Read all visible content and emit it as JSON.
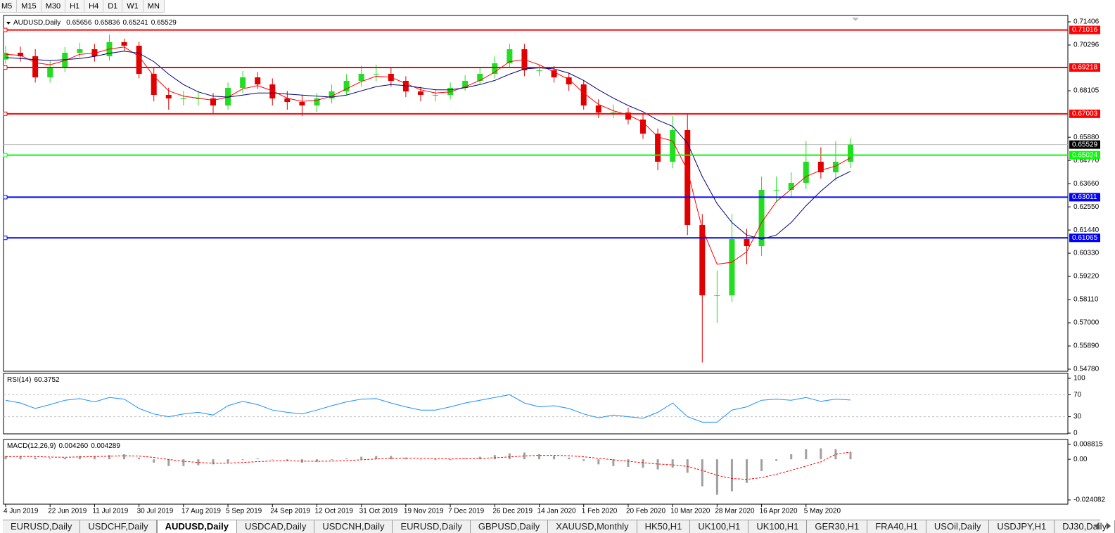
{
  "toolbar": {
    "timeframes": [
      "M5",
      "M15",
      "M30",
      "H1",
      "H4",
      "D1",
      "W1",
      "MN"
    ]
  },
  "chart_data": {
    "type": "candlestick",
    "symbol": "AUDUSD,Daily",
    "last_bar": [
      0.65656,
      0.65836,
      0.65241,
      0.65529
    ],
    "bull_color": "#22dd22",
    "bear_color": "#e00000",
    "open": [
      0.696,
      0.69925,
      0.69757,
      0.68747,
      0.69252,
      0.69925,
      0.70093,
      0.69757,
      0.7043,
      0.70262,
      0.68915,
      0.67906,
      0.67737,
      0.67737,
      0.67737,
      0.67401,
      0.68242,
      0.68747,
      0.6841,
      0.67737,
      0.67569,
      0.67401,
      0.67737,
      0.68074,
      0.68579,
      0.68915,
      0.68915,
      0.68579,
      0.68074,
      0.67906,
      0.67906,
      0.68242,
      0.68579,
      0.68915,
      0.6942,
      0.70093,
      0.69084,
      0.69084,
      0.68747,
      0.6841,
      0.67401,
      0.67064,
      0.67064,
      0.66727,
      0.66054,
      0.64708,
      0.66223,
      0.61679,
      0.58313,
      0.58313,
      0.61005,
      0.60669,
      0.63362,
      0.63362,
      0.63698,
      0.64708,
      0.64203,
      0.64708
    ],
    "high": [
      0.7025,
      0.7022,
      0.701,
      0.6955,
      0.702,
      0.704,
      0.7035,
      0.708,
      0.706,
      0.7045,
      0.692,
      0.6825,
      0.681,
      0.681,
      0.68,
      0.685,
      0.6905,
      0.69,
      0.687,
      0.681,
      0.679,
      0.68,
      0.684,
      0.689,
      0.693,
      0.6935,
      0.692,
      0.688,
      0.683,
      0.682,
      0.685,
      0.6885,
      0.692,
      0.6975,
      0.7035,
      0.7035,
      0.6935,
      0.693,
      0.6895,
      0.686,
      0.677,
      0.6745,
      0.673,
      0.67,
      0.663,
      0.669,
      0.67,
      0.622,
      0.595,
      0.622,
      0.615,
      0.64,
      0.64,
      0.642,
      0.657,
      0.654,
      0.657,
      0.6584
    ],
    "low": [
      0.694,
      0.695,
      0.685,
      0.685,
      0.69,
      0.697,
      0.695,
      0.6955,
      0.7,
      0.687,
      0.676,
      0.672,
      0.674,
      0.674,
      0.67,
      0.672,
      0.68,
      0.682,
      0.674,
      0.672,
      0.669,
      0.671,
      0.675,
      0.679,
      0.683,
      0.6855,
      0.683,
      0.678,
      0.676,
      0.676,
      0.677,
      0.681,
      0.684,
      0.687,
      0.692,
      0.688,
      0.688,
      0.685,
      0.681,
      0.672,
      0.668,
      0.668,
      0.665,
      0.658,
      0.643,
      0.644,
      0.612,
      0.551,
      0.57,
      0.58,
      0.598,
      0.602,
      0.628,
      0.63,
      0.634,
      0.639,
      0.638,
      0.644
    ],
    "close": [
      0.69925,
      0.69757,
      0.68747,
      0.69252,
      0.69925,
      0.70093,
      0.69757,
      0.7043,
      0.70262,
      0.68915,
      0.67906,
      0.67737,
      0.67737,
      0.67737,
      0.67401,
      0.68242,
      0.68747,
      0.6841,
      0.67737,
      0.67569,
      0.67401,
      0.67737,
      0.68074,
      0.68579,
      0.68915,
      0.68915,
      0.68579,
      0.68074,
      0.67906,
      0.67906,
      0.68242,
      0.68579,
      0.68915,
      0.6942,
      0.70093,
      0.69084,
      0.69084,
      0.68747,
      0.6841,
      0.67401,
      0.67064,
      0.67064,
      0.66727,
      0.66054,
      0.64708,
      0.66223,
      0.61679,
      0.58313,
      0.58313,
      0.61005,
      0.60669,
      0.63362,
      0.63362,
      0.63698,
      0.64708,
      0.64203,
      0.64708,
      0.65529
    ],
    "series": [
      {
        "color": "#ff0000",
        "values": [
          0.6985,
          0.698,
          0.6945,
          0.6935,
          0.6955,
          0.6985,
          0.699,
          0.701,
          0.702,
          0.6975,
          0.688,
          0.681,
          0.6785,
          0.6775,
          0.6765,
          0.678,
          0.682,
          0.6835,
          0.681,
          0.6775,
          0.676,
          0.6765,
          0.6785,
          0.682,
          0.6855,
          0.688,
          0.6875,
          0.6845,
          0.6815,
          0.68,
          0.6805,
          0.683,
          0.686,
          0.69,
          0.695,
          0.696,
          0.6935,
          0.69,
          0.6865,
          0.68,
          0.6745,
          0.6715,
          0.6695,
          0.666,
          0.659,
          0.657,
          0.643,
          0.615,
          0.598,
          0.599,
          0.604,
          0.618,
          0.628,
          0.634,
          0.64,
          0.643,
          0.645,
          0.649
        ]
      },
      {
        "color": "#000080",
        "values": [
          0.697,
          0.6965,
          0.696,
          0.6955,
          0.696,
          0.6965,
          0.6975,
          0.699,
          0.7,
          0.699,
          0.695,
          0.689,
          0.684,
          0.6805,
          0.6785,
          0.678,
          0.679,
          0.68,
          0.68,
          0.6795,
          0.679,
          0.6785,
          0.678,
          0.679,
          0.681,
          0.683,
          0.684,
          0.6835,
          0.6825,
          0.6815,
          0.6815,
          0.6825,
          0.684,
          0.686,
          0.689,
          0.6915,
          0.692,
          0.6915,
          0.6895,
          0.686,
          0.6815,
          0.6775,
          0.674,
          0.671,
          0.667,
          0.664,
          0.656,
          0.64,
          0.627,
          0.618,
          0.612,
          0.61,
          0.612,
          0.618,
          0.626,
          0.633,
          0.639,
          0.6425
        ]
      }
    ],
    "levels": [
      {
        "value": 0.71016,
        "color": "#ff0000"
      },
      {
        "value": 0.69218,
        "color": "#ff0000"
      },
      {
        "value": 0.67003,
        "color": "#ff0000"
      },
      {
        "value": 0.65024,
        "color": "#00ff00"
      },
      {
        "value": 0.63011,
        "color": "#0000ff"
      },
      {
        "value": 0.61065,
        "color": "#0000ff"
      }
    ],
    "ylim": [
      0.54679,
      0.71709
    ],
    "yticks": [
      0.71406,
      0.70296,
      0.68105,
      {
        "value": 0.6588,
        "label": "0.65880"
      },
      {
        "value": 0.6477,
        "label": "0.64770"
      },
      {
        "value": 0.6366,
        "label": "0.63660"
      },
      {
        "value": 0.6255,
        "label": "0.62550"
      },
      {
        "value": 0.6144,
        "label": "0.61440"
      },
      {
        "value": 0.6033,
        "label": "0.60330"
      },
      {
        "value": 0.5922,
        "label": "0.59220"
      },
      {
        "value": 0.5811,
        "label": "0.58110"
      },
      {
        "value": 0.57,
        "label": "0.57000"
      },
      {
        "value": 0.5589,
        "label": "0.55890"
      },
      {
        "value": 0.5478,
        "label": "0.54780"
      }
    ],
    "xticks": [
      {
        "value": 0,
        "label": "4 Jun 2019"
      },
      {
        "value": 3,
        "label": "22 Jun 2019"
      },
      {
        "value": 6,
        "label": "11 Jul 2019"
      },
      {
        "value": 9,
        "label": "30 Jul 2019"
      },
      {
        "value": 12,
        "label": "17 Aug 2019"
      },
      {
        "value": 15,
        "label": "5 Sep 2019"
      },
      {
        "value": 18,
        "label": "24 Sep 2019"
      },
      {
        "value": 21,
        "label": "12 Oct 2019"
      },
      {
        "value": 24,
        "label": "31 Oct 2019"
      },
      {
        "value": 27,
        "label": "19 Nov 2019"
      },
      {
        "value": 30,
        "label": "7 Dec 2019"
      },
      {
        "value": 33,
        "label": "26 Dec 2019"
      },
      {
        "value": 36,
        "label": "14 Jan 2020"
      },
      {
        "value": 39,
        "label": "1 Feb 2020"
      },
      {
        "value": 42,
        "label": "20 Feb 2020"
      },
      {
        "value": 45,
        "label": "10 Mar 2020"
      },
      {
        "value": 48,
        "label": "28 Mar 2020"
      },
      {
        "value": 51,
        "label": "16 Apr 2020"
      },
      {
        "value": 54,
        "label": "5 May 2020"
      }
    ],
    "rsi": {
      "name": "RSI(14)",
      "color": "#1e90ff",
      "values": [
        60,
        55,
        45,
        52,
        60,
        63,
        57,
        65,
        62,
        45,
        35,
        30,
        35,
        38,
        33,
        50,
        58,
        52,
        42,
        38,
        35,
        42,
        50,
        57,
        62,
        63,
        55,
        48,
        42,
        42,
        48,
        55,
        60,
        65,
        70,
        55,
        48,
        50,
        45,
        35,
        28,
        33,
        30,
        27,
        38,
        55,
        30,
        20,
        20,
        42,
        48,
        60,
        62,
        60,
        65,
        58,
        62,
        60.3752
      ],
      "ylim": [
        0,
        100
      ],
      "yticks": [
        100,
        70,
        30,
        0
      ],
      "levels": [
        70,
        30
      ]
    },
    "macd": {
      "name": "MACD(12,26,9)",
      "hist_color": "#a0a0a0",
      "signal_color": "#ff0000",
      "legend_values": [
        {
          "value": 0.00426,
          "label": "0.004260"
        },
        0.004289
      ],
      "histogram": [
        0.002,
        0.002,
        0.001,
        0.0005,
        0.001,
        0.002,
        0.002,
        0.0025,
        0.003,
        0.001,
        -0.002,
        -0.004,
        -0.004,
        -0.0035,
        -0.003,
        -0.002,
        -0.0005,
        0.0005,
        0,
        -0.001,
        -0.002,
        -0.0015,
        -0.0005,
        0.0005,
        0.0015,
        0.002,
        0.002,
        0.001,
        0,
        -0.0005,
        -0.0005,
        0.0005,
        0.0015,
        0.0025,
        0.0035,
        0.004,
        0.003,
        0.002,
        0.001,
        -0.001,
        -0.003,
        -0.004,
        -0.0045,
        -0.005,
        -0.006,
        -0.005,
        -0.008,
        -0.016,
        -0.021,
        -0.019,
        -0.014,
        -0.007,
        -0.001,
        0.003,
        0.006,
        0.0065,
        0.006,
        0.00426
      ],
      "signal": [
        0.0015,
        0.0017,
        0.0016,
        0.0013,
        0.0012,
        0.0014,
        0.0016,
        0.0018,
        0.0021,
        0.0019,
        0.0011,
        -0.0001,
        -0.0012,
        -0.0019,
        -0.0023,
        -0.0023,
        -0.0019,
        -0.0014,
        -0.001,
        -0.0009,
        -0.0011,
        -0.0012,
        -0.0011,
        -0.0008,
        -0.0003,
        0.0002,
        0.0006,
        0.0007,
        0.0006,
        0.0004,
        0.0002,
        0.0003,
        0.0005,
        0.0009,
        0.0014,
        0.002,
        0.0023,
        0.0023,
        0.0021,
        0.0015,
        0.0006,
        -0.0003,
        -0.0012,
        -0.002,
        -0.0028,
        -0.0033,
        -0.0042,
        -0.0066,
        -0.0095,
        -0.0114,
        -0.0119,
        -0.0109,
        -0.0089,
        -0.0065,
        -0.004,
        -0.0015,
        0.003,
        0.004289
      ],
      "ylim": [
        -0.02658,
        0.01131
      ],
      "yticks": [
        0.008815,
        {
          "value": 0,
          "label": "0.00"
        },
        -0.024082
      ]
    }
  },
  "tabs": {
    "items": [
      "EURUSD,Daily",
      "USDCHF,Daily",
      "AUDUSD,Daily",
      "USDCAD,Daily",
      "USDCNH,Daily",
      "EURUSD,Daily",
      "GBPUSD,Daily",
      "XAUUSD,Monthly",
      "HK50,H1",
      "UK100,H1",
      "UK100,H1",
      "GER30,H1",
      "FRA40,H1",
      "USOil,Daily",
      "USDJPY,H1",
      "DJ30,Daily"
    ],
    "active": 2
  }
}
